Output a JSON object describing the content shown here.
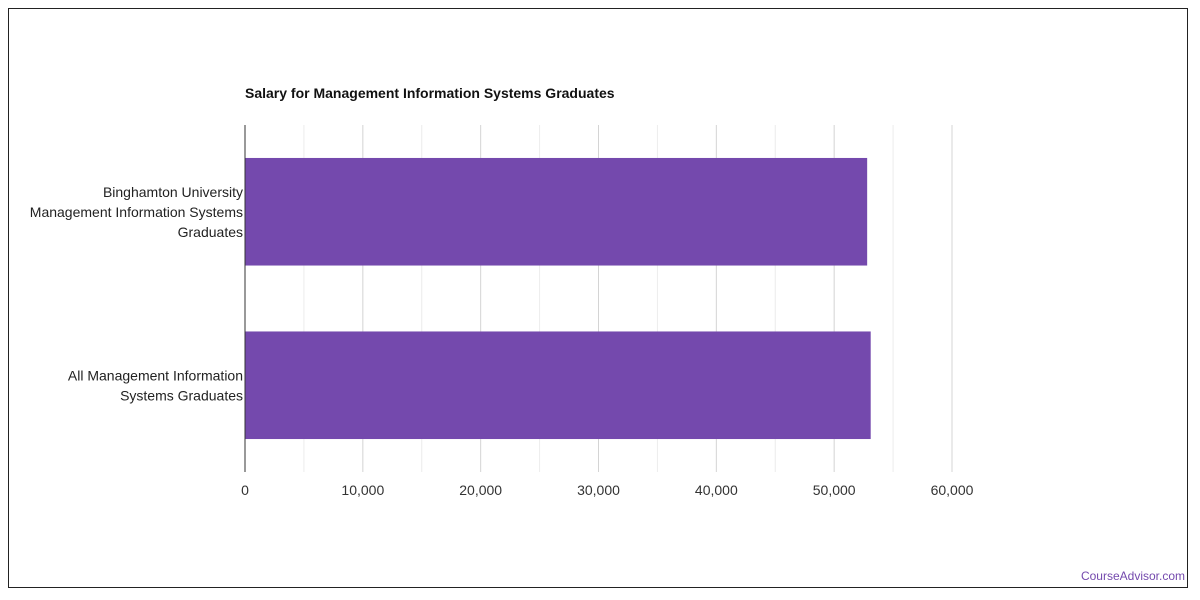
{
  "chart_data": {
    "type": "bar",
    "orientation": "horizontal",
    "title": "Salary for Management Information Systems Graduates",
    "categories": [
      [
        "Binghamton University",
        "Management Information Systems",
        "Graduates"
      ],
      [
        "All Management Information",
        "Systems Graduates"
      ]
    ],
    "values": [
      52800,
      53100
    ],
    "xlim": [
      0,
      60000
    ],
    "xticks": [
      0,
      10000,
      20000,
      30000,
      40000,
      50000,
      60000
    ],
    "xtick_labels": [
      "0",
      "10,000",
      "20,000",
      "30,000",
      "40,000",
      "50,000",
      "60,000"
    ],
    "grid": true,
    "legend": "none",
    "bar_color": "#7449ad"
  },
  "watermark": {
    "text": "CourseAdvisor.com",
    "color": "#7449ad"
  }
}
